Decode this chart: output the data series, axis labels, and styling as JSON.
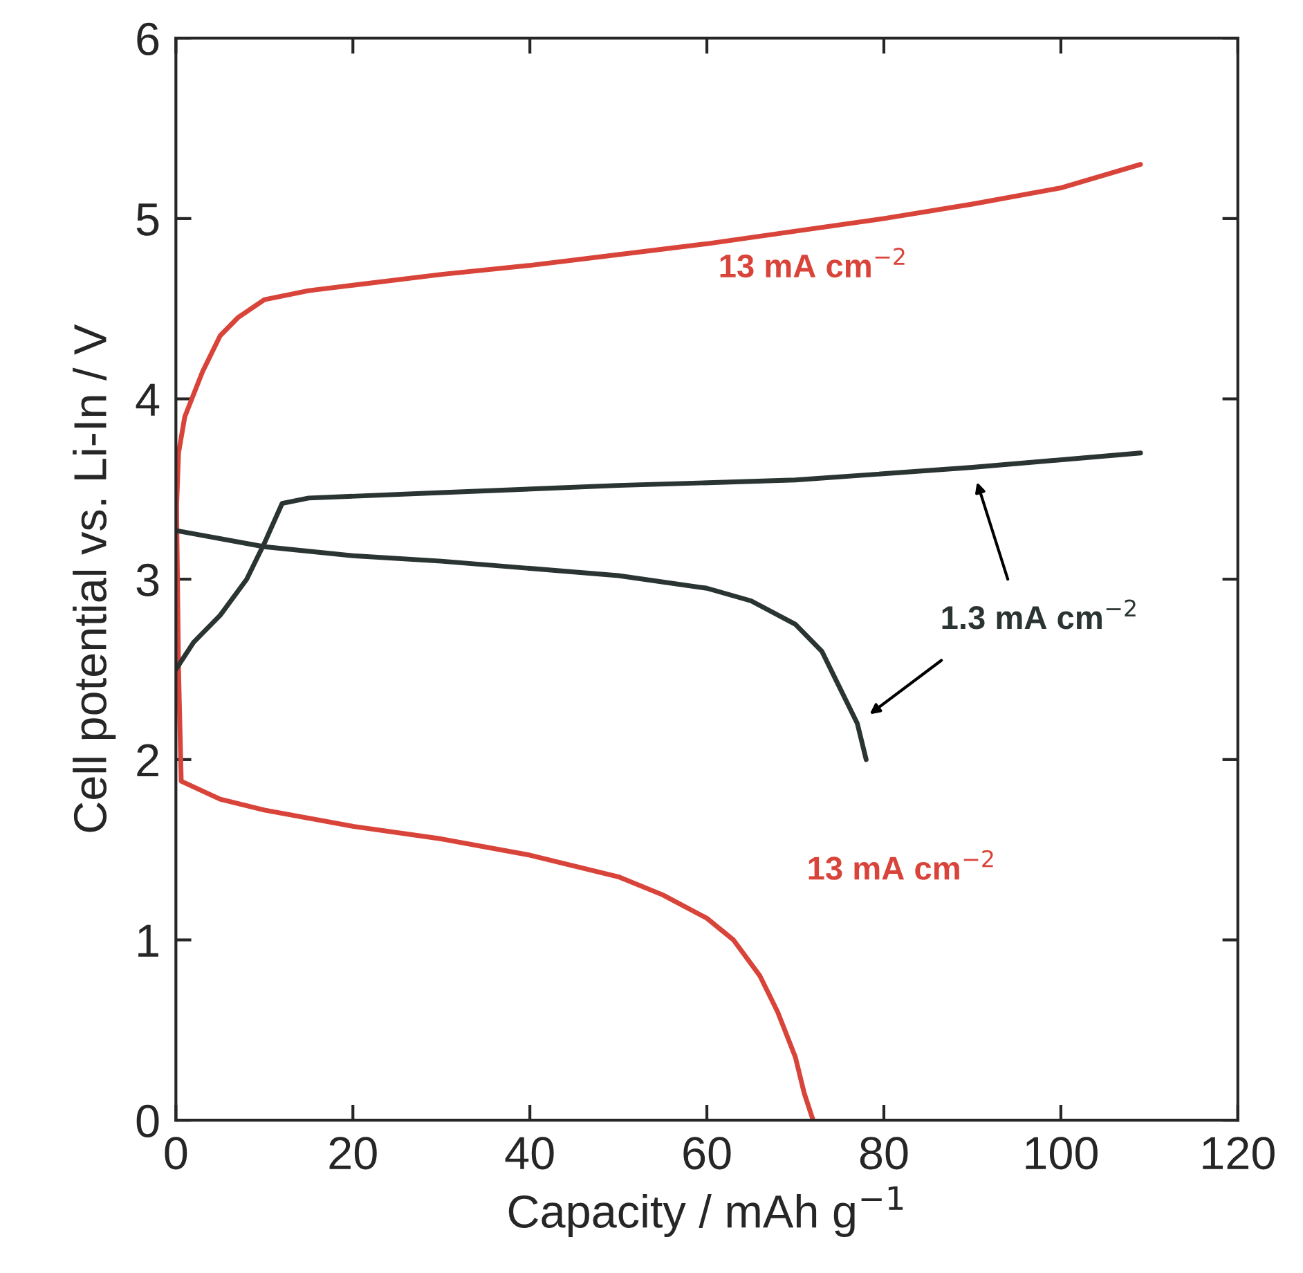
{
  "chart_data": {
    "type": "line",
    "xlabel": "Capacity / mAh g$^{−1}$",
    "ylabel": "Cell potential vs. Li-In / V",
    "xlim": [
      0,
      120
    ],
    "xticks": [
      0,
      20,
      40,
      60,
      80,
      100,
      120
    ],
    "ylim": [
      0,
      6
    ],
    "yticks": [
      0,
      1,
      2,
      3,
      4,
      5,
      6
    ],
    "grid": false,
    "legend": false,
    "marker": "none",
    "line_style": "solid",
    "series": [
      {
        "name": "13 mA cm$^{−2}$",
        "color": "#d9443a",
        "x": [
          0,
          0.3,
          1,
          3,
          5,
          7,
          10,
          15,
          20,
          30,
          40,
          50,
          60,
          70,
          80,
          90,
          100,
          109
        ],
        "values": [
          3.3,
          3.7,
          3.9,
          4.15,
          4.35,
          4.45,
          4.55,
          4.6,
          4.63,
          4.69,
          4.74,
          4.8,
          4.86,
          4.93,
          5.0,
          5.08,
          5.17,
          5.3
        ]
      },
      {
        "name": "13 mA cm$^{−2}$",
        "color": "#d9443a",
        "x": [
          0,
          0.3,
          0.6,
          5,
          10,
          20,
          30,
          40,
          50,
          55,
          60,
          63,
          66,
          68,
          70,
          71,
          72
        ],
        "values": [
          3.7,
          2.5,
          1.88,
          1.78,
          1.72,
          1.63,
          1.56,
          1.47,
          1.35,
          1.25,
          1.12,
          1.0,
          0.8,
          0.6,
          0.35,
          0.15,
          0
        ]
      },
      {
        "name": "1.3 mA cm$^{−2}$",
        "color": "#2a3433",
        "x": [
          0,
          2,
          5,
          8,
          10,
          12,
          15,
          30,
          50,
          70,
          90,
          109
        ],
        "values": [
          2.5,
          2.65,
          2.8,
          3.0,
          3.2,
          3.42,
          3.45,
          3.48,
          3.52,
          3.55,
          3.62,
          3.7
        ]
      },
      {
        "color": "#2a3433",
        "x": [
          0,
          10,
          20,
          30,
          40,
          50,
          60,
          65,
          70,
          73,
          75,
          77,
          78
        ],
        "values": [
          3.27,
          3.18,
          3.13,
          3.1,
          3.06,
          3.02,
          2.95,
          2.88,
          2.75,
          2.6,
          2.4,
          2.2,
          2.0
        ]
      }
    ]
  }
}
